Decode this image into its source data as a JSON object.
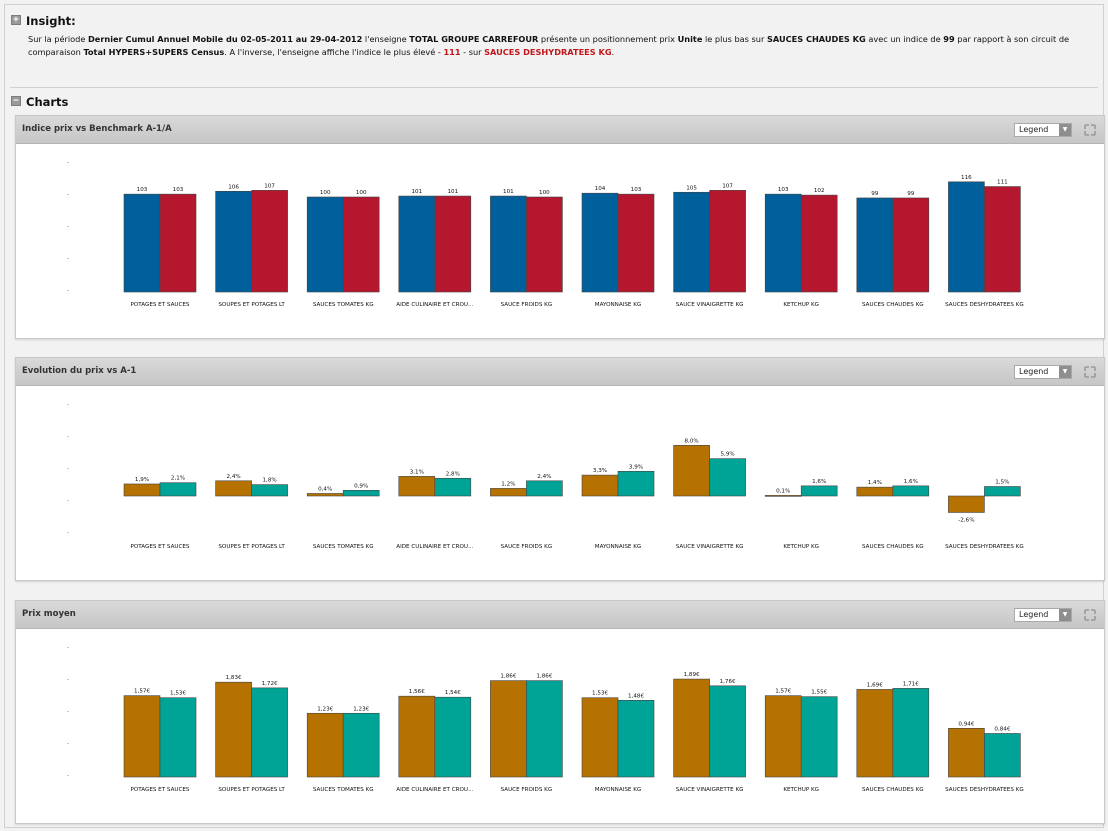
{
  "insight": {
    "title": "Insight:",
    "t1": "Sur la période ",
    "b1": "Dernier Cumul Annuel Mobile du 02-05-2011 au 29-04-2012",
    "t2": " l'enseigne ",
    "b2": "TOTAL GROUPE CARREFOUR",
    "t3": " présente un positionnement prix ",
    "b3": "Unite",
    "t4": " le plus bas sur ",
    "b4": "SAUCES CHAUDES KG",
    "t5": " avec un indice de ",
    "b5": "99",
    "t6": " par rapport à son circuit de comparaison ",
    "b6": "Total HYPERS+SUPERS Census",
    "t7": ". A l'inverse, l'enseigne  affiche l'indice le plus élevé - ",
    "r1": "111",
    "t8": " - sur ",
    "r2": "SAUCES DESHYDRATEES KG",
    "t9": "."
  },
  "charts_section": {
    "title": "Charts"
  },
  "panels": [
    {
      "title": "Indice prix vs Benchmark A-1/A",
      "legend_label": "Legend"
    },
    {
      "title": "Evolution du prix vs A-1",
      "legend_label": "Legend"
    },
    {
      "title": "Prix moyen",
      "legend_label": "Legend"
    }
  ],
  "colors": {
    "blue": "#00609c",
    "red": "#b5172f",
    "orange": "#b67200",
    "teal": "#00a497"
  },
  "chart_data": [
    {
      "type": "bar",
      "title": "Indice prix vs Benchmark A-1/A",
      "categories": [
        "POTAGES ET SAUCES",
        "SOUPES ET POTAGES LT",
        "SAUCES TOMATES KG",
        "AIDE CULINAIRE ET CROU...",
        "SAUCE FROIDS KG",
        "MAYONNAISE KG",
        "SAUCE VINAIGRETTE KG",
        "KETCHUP KG",
        "SAUCES CHAUDES KG",
        "SAUCES DESHYDRATEES KG"
      ],
      "series": [
        {
          "color": "#00609c",
          "values": [
            103,
            106,
            100,
            101,
            101,
            104,
            105,
            103,
            99,
            116
          ],
          "labels": [
            "103",
            "106",
            "100",
            "101",
            "101",
            "104",
            "105",
            "103",
            "99",
            "116"
          ]
        },
        {
          "color": "#b5172f",
          "values": [
            103,
            107,
            100,
            101,
            100,
            103,
            107,
            102,
            99,
            111
          ],
          "labels": [
            "103",
            "107",
            "100",
            "101",
            "100",
            "103",
            "107",
            "102",
            "99",
            "111"
          ]
        }
      ],
      "ylim": [
        0,
        120
      ]
    },
    {
      "type": "bar",
      "title": "Evolution du prix vs A-1",
      "categories": [
        "POTAGES ET SAUCES",
        "SOUPES ET POTAGES LT",
        "SAUCES TOMATES KG",
        "AIDE CULINAIRE ET CROU...",
        "SAUCE FROIDS KG",
        "MAYONNAISE KG",
        "SAUCE VINAIGRETTE KG",
        "KETCHUP KG",
        "SAUCES CHAUDES KG",
        "SAUCES DESHYDRATEES KG"
      ],
      "series": [
        {
          "color": "#b67200",
          "values": [
            1.9,
            2.4,
            0.4,
            3.1,
            1.2,
            3.3,
            8.0,
            0.1,
            1.4,
            -2.6
          ],
          "labels": [
            "1,9%",
            "2,4%",
            "0,4%",
            "3,1%",
            "1,2%",
            "3,3%",
            "8,0%",
            "0,1%",
            "1,4%",
            "-2,6%"
          ]
        },
        {
          "color": "#00a497",
          "values": [
            2.1,
            1.8,
            0.9,
            2.8,
            2.4,
            3.9,
            5.9,
            1.6,
            1.6,
            1.5
          ],
          "labels": [
            "2,1%",
            "1,8%",
            "0,9%",
            "2,8%",
            "2,4%",
            "3,9%",
            "5,9%",
            "1,6%",
            "1,6%",
            "1,5%"
          ]
        }
      ],
      "ylim": [
        -6,
        12
      ]
    },
    {
      "type": "bar",
      "title": "Prix moyen",
      "categories": [
        "POTAGES ET SAUCES",
        "SOUPES ET POTAGES LT",
        "SAUCES TOMATES KG",
        "AIDE CULINAIRE ET CROU...",
        "SAUCE FROIDS KG",
        "MAYONNAISE KG",
        "SAUCE VINAIGRETTE KG",
        "KETCHUP KG",
        "SAUCES CHAUDES KG",
        "SAUCES DESHYDRATEES KG"
      ],
      "series": [
        {
          "color": "#b67200",
          "values": [
            1.57,
            1.83,
            1.23,
            1.56,
            1.86,
            1.53,
            1.89,
            1.57,
            1.69,
            0.94
          ],
          "labels": [
            "1,57€",
            "1,83€",
            "1,23€",
            "1,56€",
            "1,86€",
            "1,53€",
            "1,89€",
            "1,57€",
            "1,69€",
            "0,94€"
          ]
        },
        {
          "color": "#00a497",
          "values": [
            1.53,
            1.72,
            1.23,
            1.54,
            1.86,
            1.48,
            1.76,
            1.55,
            1.71,
            0.84
          ],
          "labels": [
            "1,53€",
            "1,72€",
            "1,23€",
            "1,54€",
            "1,86€",
            "1,48€",
            "1,76€",
            "1,55€",
            "1,71€",
            "0,84€"
          ]
        }
      ],
      "ylim": [
        0,
        2.2
      ]
    }
  ]
}
